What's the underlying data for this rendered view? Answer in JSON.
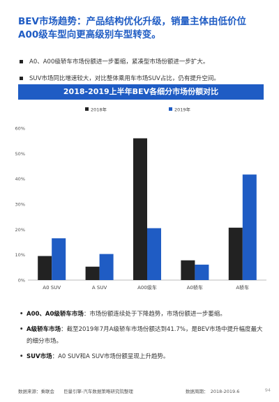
{
  "headline": "BEV市场趋势：产品结构优化升级，销量主体由低价位A00级车型向更高级别车型转变。",
  "top_bullets": [
    "A0、A00级轿车市场份额进一步萎缩，紧凑型市场份额进一步扩大。",
    "SUV市场同比增速较大，对比整体乘用车市场SUV占比，仍有提升空间。"
  ],
  "chart_banner": "2018-2019上半年BEV各细分市场份额对比",
  "chart_data": {
    "type": "bar",
    "categories": [
      "A0 SUV",
      "A SUV",
      "A00级车",
      "A0轿车",
      "A轿车"
    ],
    "series": [
      {
        "name": "2018年",
        "color": "#222222",
        "values": [
          9.5,
          5.3,
          56.0,
          7.8,
          20.7
        ]
      },
      {
        "name": "2019年",
        "color": "#1f5cc4",
        "values": [
          16.5,
          10.3,
          20.5,
          6.1,
          41.7
        ]
      }
    ],
    "yticks": [
      "0%",
      "10%",
      "20%",
      "30%",
      "40%",
      "50%",
      "60%"
    ],
    "ylim": [
      0,
      60
    ],
    "grid": false,
    "legend": "top-center"
  },
  "bottom_bullets": [
    {
      "bold": "A00、A0级轿车市场",
      "text": "：市场份额连续处于下降趋势，市场份额进一步萎缩。"
    },
    {
      "bold": "A级轿车市场",
      "text": "：截至2019年7月A级轿车市场份额达到41.7%，是BEV市场中提升幅度最大的细分市场。"
    },
    {
      "bold": "SUV市场",
      "text": "：A0 SUV和A SUV市场份额呈现上升趋势。"
    }
  ],
  "bullet_dot": "•",
  "footer": {
    "source": "数据来源：乘联会　　巨量引擎-汽车数据策略研究院整理",
    "period": "数据周期：　2018-2019.6",
    "page": "94"
  }
}
